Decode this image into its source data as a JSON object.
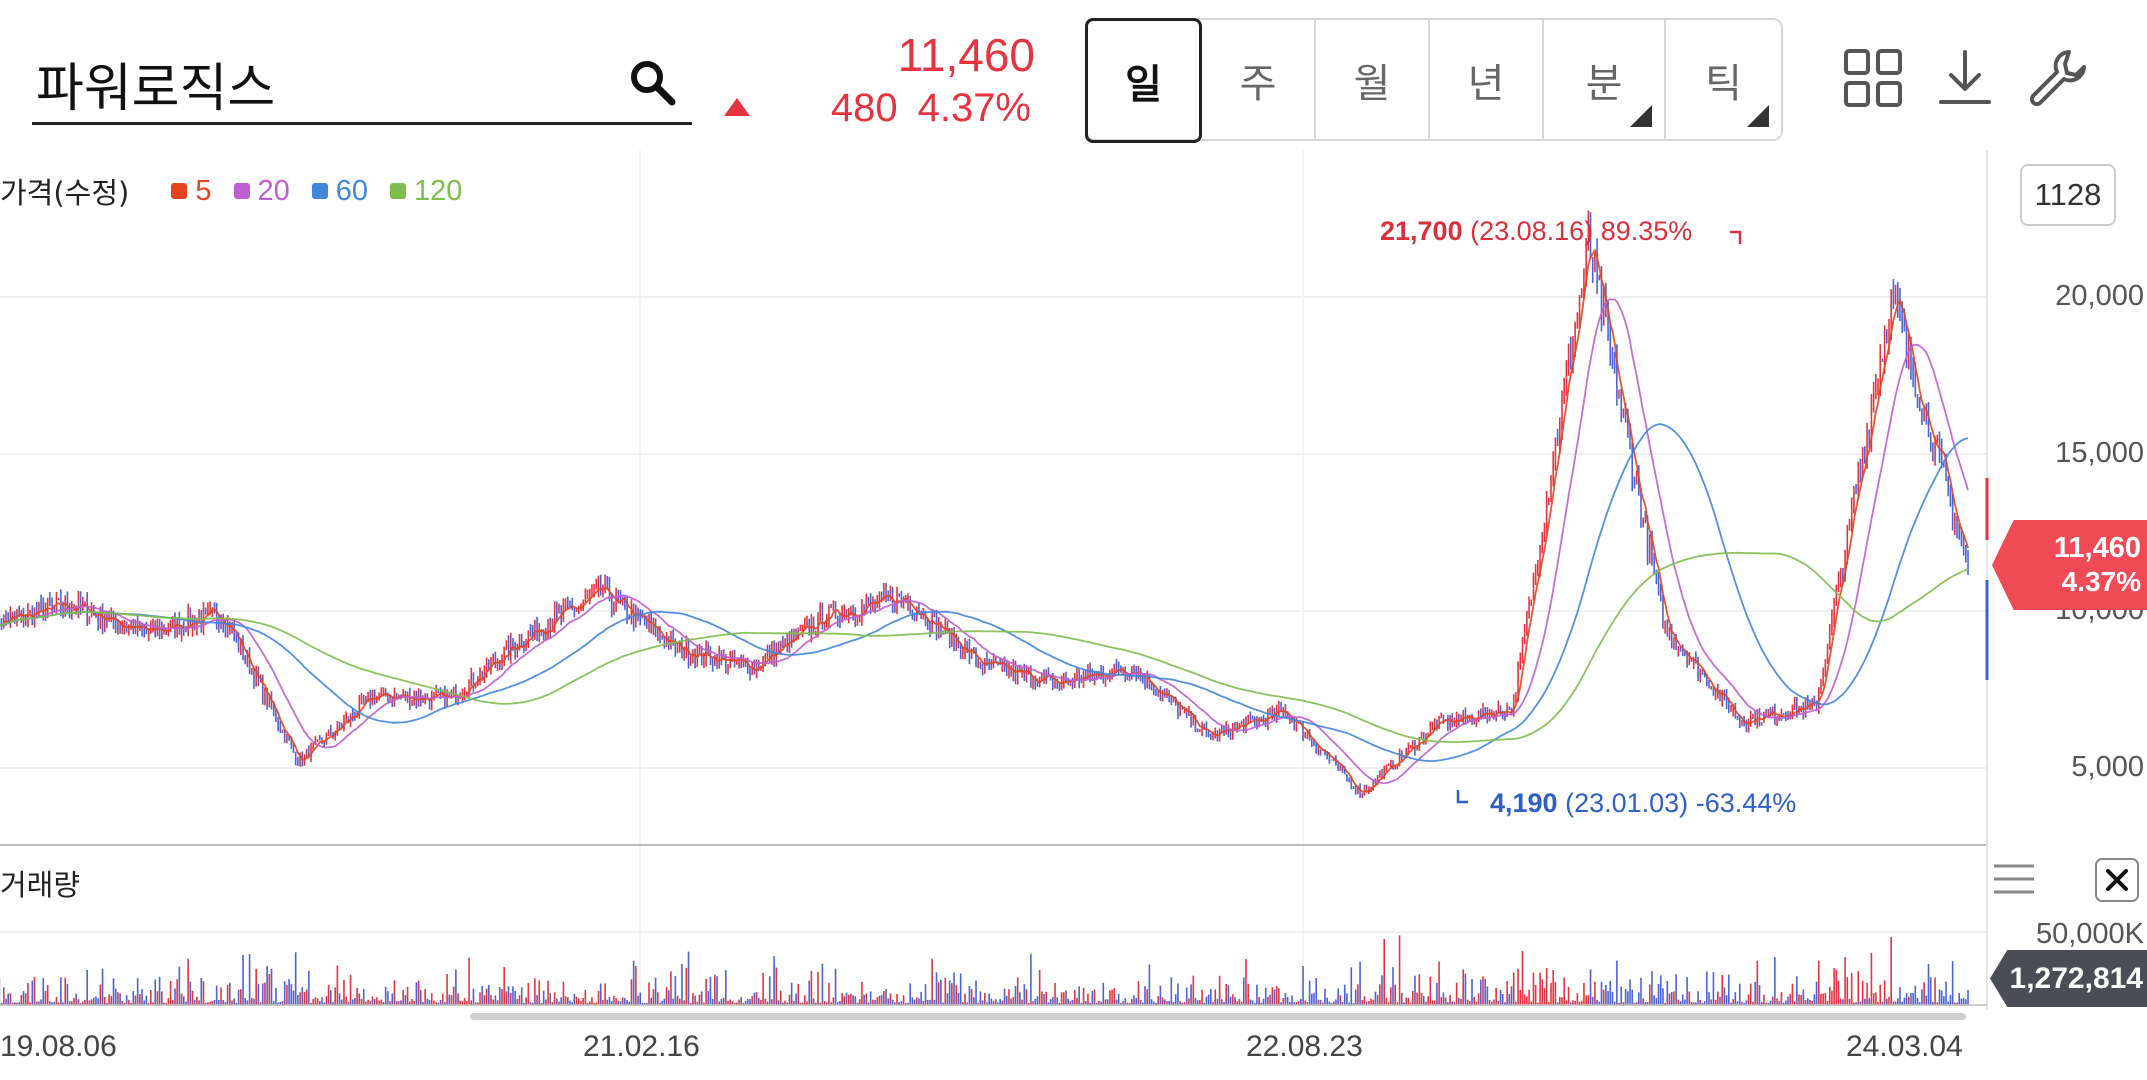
{
  "header": {
    "stock_name": "파워로직스",
    "price": "11,460",
    "change_amount": "480",
    "change_percent": "4.37%",
    "change_direction": "up",
    "up_color": "#e5343f"
  },
  "period_tabs": [
    {
      "label": "일",
      "active": true,
      "has_submenu": false
    },
    {
      "label": "주",
      "active": false,
      "has_submenu": false
    },
    {
      "label": "월",
      "active": false,
      "has_submenu": false
    },
    {
      "label": "년",
      "active": false,
      "has_submenu": false
    },
    {
      "label": "분",
      "active": false,
      "has_submenu": true
    },
    {
      "label": "틱",
      "active": false,
      "has_submenu": true
    }
  ],
  "toolbar": {
    "icons": [
      "grid-icon",
      "download-icon",
      "wrench-icon"
    ]
  },
  "legend": {
    "title": "가격(수정)",
    "items": [
      {
        "label": "5",
        "color": "#e8431d"
      },
      {
        "label": "20",
        "color": "#c05ed4"
      },
      {
        "label": "60",
        "color": "#3f86dc"
      },
      {
        "label": "120",
        "color": "#7fbd4c"
      }
    ]
  },
  "data_count": "1128",
  "volume_label": "거래량",
  "current_price_tag": {
    "price": "11,460",
    "percent": "4.37%"
  },
  "volume_tag": "1,272,814",
  "annotations": {
    "high": {
      "value": "21,700",
      "date": "(23.08.16)",
      "percent": "89.35%"
    },
    "low": {
      "value": "4,190",
      "date": "(23.01.03)",
      "percent": "-63.44%"
    }
  },
  "chart_data": {
    "type": "line",
    "title": "",
    "price_axis": {
      "ticks": [
        "20,000",
        "15,000",
        "10,000",
        "5,000"
      ],
      "ylim": [
        2400,
        22700
      ]
    },
    "volume_axis": {
      "ticks": [
        "50,000K"
      ]
    },
    "x_tick_labels": [
      "19.08.06",
      "21.02.16",
      "22.08.23",
      "24.03.04"
    ],
    "grid": true,
    "price_series_approx": [
      {
        "date": "19.08.06",
        "close": 9600
      },
      {
        "date": "19.10",
        "close": 10200
      },
      {
        "date": "19.12",
        "close": 9300
      },
      {
        "date": "20.02",
        "close": 9900
      },
      {
        "date": "20.03",
        "close": 5200
      },
      {
        "date": "20.06",
        "close": 7300
      },
      {
        "date": "20.10",
        "close": 7200
      },
      {
        "date": "21.01",
        "close": 9200
      },
      {
        "date": "21.03",
        "close": 10600
      },
      {
        "date": "21.05",
        "close": 8800
      },
      {
        "date": "21.07",
        "close": 8200
      },
      {
        "date": "21.09",
        "close": 9900
      },
      {
        "date": "21.11",
        "close": 10400
      },
      {
        "date": "22.01",
        "close": 8300
      },
      {
        "date": "22.04",
        "close": 7700
      },
      {
        "date": "22.06",
        "close": 8200
      },
      {
        "date": "22.08",
        "close": 6000
      },
      {
        "date": "22.10",
        "close": 6800
      },
      {
        "date": "23.01",
        "close": 4190
      },
      {
        "date": "23.04",
        "close": 6400
      },
      {
        "date": "23.07",
        "close": 6900
      },
      {
        "date": "23.08",
        "close": 21700
      },
      {
        "date": "23.10",
        "close": 9500
      },
      {
        "date": "23.12",
        "close": 6500
      },
      {
        "date": "24.02",
        "close": 7000
      },
      {
        "date": "24.03",
        "close": 20000
      },
      {
        "date": "24.04",
        "close": 11460
      }
    ]
  }
}
